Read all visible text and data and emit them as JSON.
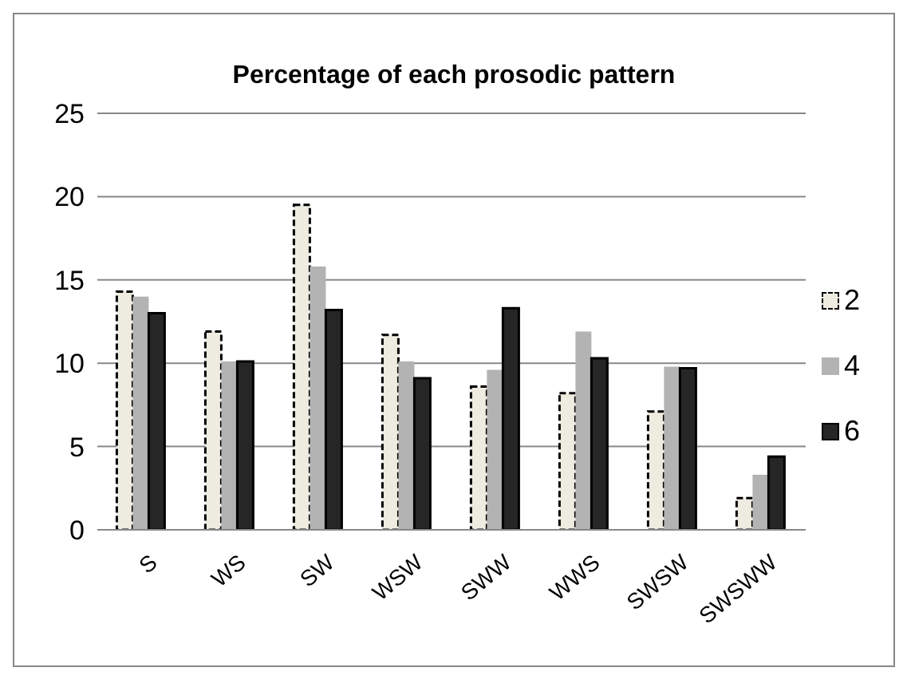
{
  "chart_data": {
    "type": "bar",
    "title": "Percentage of each prosodic pattern",
    "categories": [
      "S",
      "WS",
      "SW",
      "WSW",
      "SWW",
      "WWS",
      "SWSW",
      "SWSWW"
    ],
    "series": [
      {
        "name": "2",
        "color": "#eeece1",
        "line_style": "dashed",
        "values": [
          14.3,
          11.9,
          19.5,
          11.7,
          8.6,
          8.2,
          7.1,
          1.9
        ]
      },
      {
        "name": "4",
        "color": "#b3b3b3",
        "values": [
          14.0,
          10.1,
          15.8,
          10.1,
          9.6,
          11.9,
          9.8,
          3.3
        ]
      },
      {
        "name": "6",
        "color": "#262626",
        "values": [
          13.0,
          10.1,
          13.2,
          9.1,
          13.3,
          10.3,
          9.7,
          4.4
        ]
      }
    ],
    "ylim": [
      0,
      25
    ],
    "yticks": [
      0,
      5,
      10,
      15,
      20,
      25
    ],
    "grid": "y",
    "legend": "right"
  }
}
